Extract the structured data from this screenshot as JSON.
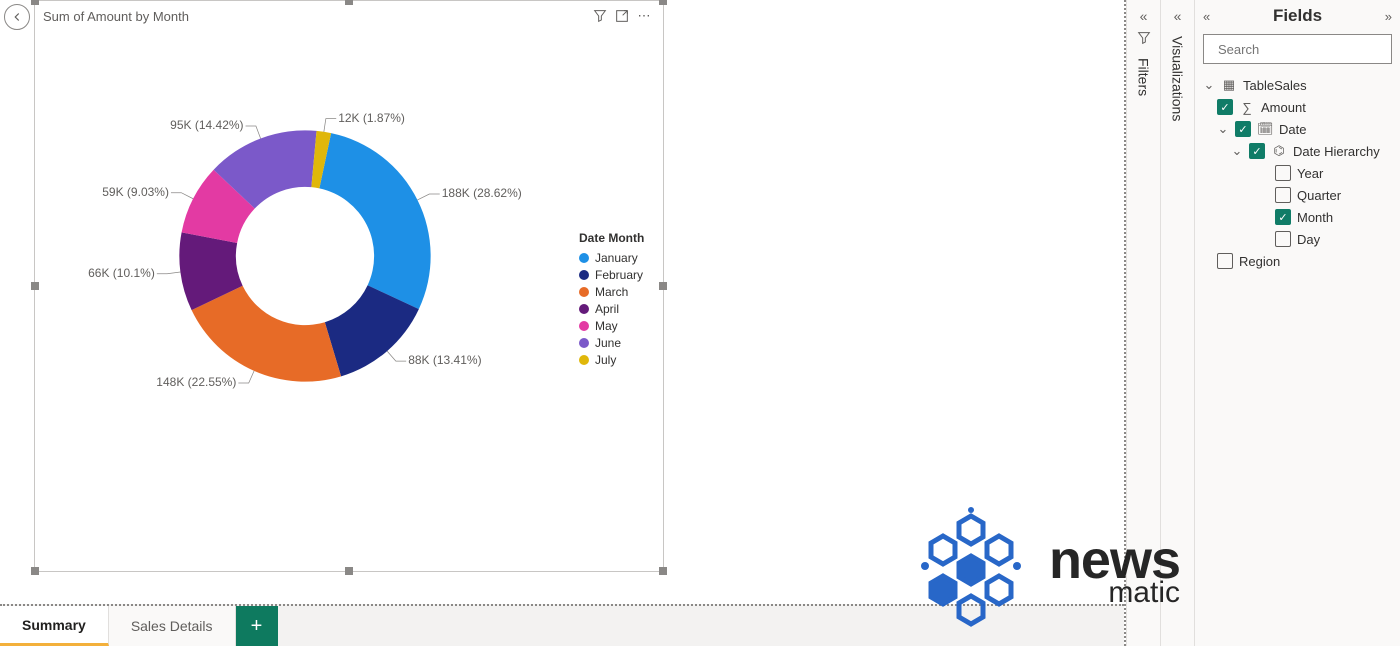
{
  "visual": {
    "title": "Sum of Amount by Month",
    "frame_color": "#c8c6c4",
    "handle_color": "#8a8886"
  },
  "chart": {
    "type": "donut",
    "inner_radius_pct": 55,
    "background_color": "#ffffff",
    "legend_title": "Date Month",
    "legend_fontsize": 12,
    "label_fontsize": 12,
    "label_color": "#605e5c",
    "slices": [
      {
        "name": "January",
        "value_k": 188,
        "pct": 28.62,
        "color": "#1e90e6",
        "label": "188K (28.62%)"
      },
      {
        "name": "February",
        "value_k": 88,
        "pct": 13.41,
        "color": "#1b2a82",
        "label": "88K (13.41%)"
      },
      {
        "name": "March",
        "value_k": 148,
        "pct": 22.55,
        "color": "#e76b27",
        "label": "148K (22.55%)"
      },
      {
        "name": "April",
        "value_k": 66,
        "pct": 10.1,
        "color": "#641a7a",
        "label": "66K (10.1%)"
      },
      {
        "name": "May",
        "value_k": 59,
        "pct": 9.03,
        "color": "#e33aa3",
        "label": "59K (9.03%)"
      },
      {
        "name": "June",
        "value_k": 95,
        "pct": 14.42,
        "color": "#7b59c9",
        "label": "95K (14.42%)"
      },
      {
        "name": "July",
        "value_k": 12,
        "pct": 1.87,
        "color": "#e0b70a",
        "label": "12K (1.87%)"
      }
    ],
    "start_angle_deg": 12
  },
  "legend_items": [
    "January",
    "February",
    "March",
    "April",
    "May",
    "June",
    "July"
  ],
  "tabs": {
    "pages": [
      {
        "name": "Summary",
        "active": true
      },
      {
        "name": "Sales Details",
        "active": false
      }
    ],
    "add_label": "+"
  },
  "rails": {
    "filters": "Filters",
    "visualizations": "Visualizations"
  },
  "fields": {
    "title": "Fields",
    "search_placeholder": "Search",
    "tree": {
      "table": "TableSales",
      "amount": "Amount",
      "date": "Date",
      "hierarchy": "Date Hierarchy",
      "year": "Year",
      "quarter": "Quarter",
      "month": "Month",
      "day": "Day",
      "region": "Region"
    },
    "checked": {
      "amount": true,
      "date": true,
      "hierarchy": true,
      "year": false,
      "quarter": false,
      "month": true,
      "day": false,
      "region": false
    },
    "accent_color": "#107c67"
  },
  "watermark": {
    "line1": "news",
    "line2": "matic",
    "color": "#1b1b1b",
    "hex_color": "#1d5fc6"
  }
}
